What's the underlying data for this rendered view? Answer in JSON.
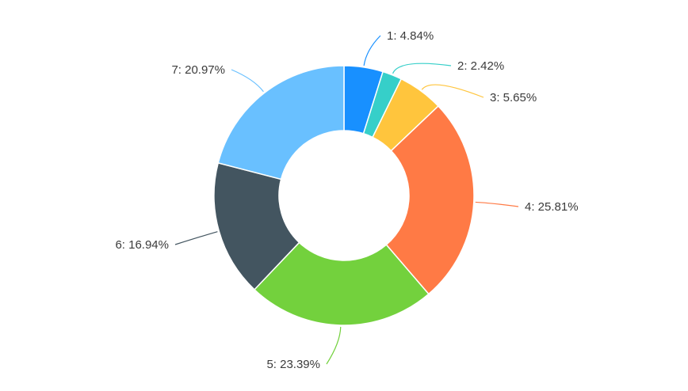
{
  "chart_data": {
    "type": "pie",
    "variant": "donut",
    "legend": "none",
    "slices": [
      {
        "name": "1",
        "value": 4.84,
        "label": "1: 4.84%",
        "color": "#1890FF"
      },
      {
        "name": "2",
        "value": 2.42,
        "label": "2: 2.42%",
        "color": "#36CFC9"
      },
      {
        "name": "3",
        "value": 5.65,
        "label": "3: 5.65%",
        "color": "#FFC53D"
      },
      {
        "name": "4",
        "value": 25.81,
        "label": "4: 25.81%",
        "color": "#FF7A45"
      },
      {
        "name": "5",
        "value": 23.39,
        "label": "5: 23.39%",
        "color": "#73D13D"
      },
      {
        "name": "6",
        "value": 16.94,
        "label": "6: 16.94%",
        "color": "#435560"
      },
      {
        "name": "7",
        "value": 20.97,
        "label": "7: 20.97%",
        "color": "#69C0FF"
      }
    ]
  }
}
